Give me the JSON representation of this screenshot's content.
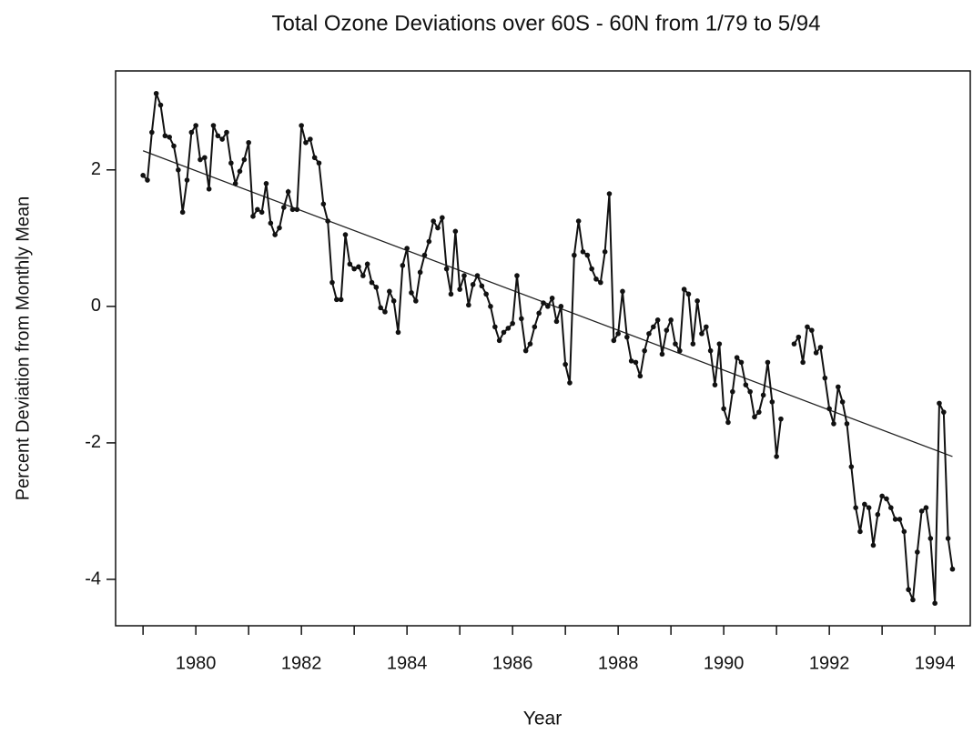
{
  "chart_data": {
    "type": "line",
    "title": "Total Ozone Deviations over 60S - 60N from 1/79 to 5/94",
    "x_label": "Year",
    "y_label": "Percent Deviation from Monthly Mean",
    "x": [
      1979,
      1979.083,
      1979.167,
      1979.25,
      1979.333,
      1979.417,
      1979.5,
      1979.583,
      1979.667,
      1979.75,
      1979.833,
      1979.917,
      1980,
      1980.083,
      1980.167,
      1980.25,
      1980.333,
      1980.417,
      1980.5,
      1980.583,
      1980.667,
      1980.75,
      1980.833,
      1980.917,
      1981,
      1981.083,
      1981.167,
      1981.25,
      1981.333,
      1981.417,
      1981.5,
      1981.583,
      1981.667,
      1981.75,
      1981.833,
      1981.917,
      1982,
      1982.083,
      1982.167,
      1982.25,
      1982.333,
      1982.417,
      1982.5,
      1982.583,
      1982.667,
      1982.75,
      1982.833,
      1982.917,
      1983,
      1983.083,
      1983.167,
      1983.25,
      1983.333,
      1983.417,
      1983.5,
      1983.583,
      1983.667,
      1983.75,
      1983.833,
      1983.917,
      1984,
      1984.083,
      1984.167,
      1984.25,
      1984.333,
      1984.417,
      1984.5,
      1984.583,
      1984.667,
      1984.75,
      1984.833,
      1984.917,
      1985,
      1985.083,
      1985.167,
      1985.25,
      1985.333,
      1985.417,
      1985.5,
      1985.583,
      1985.667,
      1985.75,
      1985.833,
      1985.917,
      1986,
      1986.083,
      1986.167,
      1986.25,
      1986.333,
      1986.417,
      1986.5,
      1986.583,
      1986.667,
      1986.75,
      1986.833,
      1986.917,
      1987,
      1987.083,
      1987.167,
      1987.25,
      1987.333,
      1987.417,
      1987.5,
      1987.583,
      1987.667,
      1987.75,
      1987.833,
      1987.917,
      1988,
      1988.083,
      1988.167,
      1988.25,
      1988.333,
      1988.417,
      1988.5,
      1988.583,
      1988.667,
      1988.75,
      1988.833,
      1988.917,
      1989,
      1989.083,
      1989.167,
      1989.25,
      1989.333,
      1989.417,
      1989.5,
      1989.583,
      1989.667,
      1989.75,
      1989.833,
      1989.917,
      1990,
      1990.083,
      1990.167,
      1990.25,
      1990.333,
      1990.417,
      1990.5,
      1990.583,
      1990.667,
      1990.75,
      1990.833,
      1990.917,
      1991,
      1991.083,
      1991.167,
      1991.25,
      1991.333,
      1991.417,
      1991.5,
      1991.583,
      1991.667,
      1991.75,
      1991.833,
      1991.917,
      1992,
      1992.083,
      1992.167,
      1992.25,
      1992.333,
      1992.417,
      1992.5,
      1992.583,
      1992.667,
      1992.75,
      1992.833,
      1992.917,
      1993,
      1993.083,
      1993.167,
      1993.25,
      1993.333,
      1993.417,
      1993.5,
      1993.583,
      1993.667,
      1993.75,
      1993.833,
      1993.917,
      1994,
      1994.083,
      1994.167,
      1994.25,
      1994.333
    ],
    "series": [
      {
        "color": "#111111",
        "values": [
          1.92,
          1.85,
          2.55,
          3.12,
          2.95,
          2.5,
          2.48,
          2.35,
          2.0,
          1.38,
          1.85,
          2.55,
          2.65,
          2.15,
          2.18,
          1.72,
          2.65,
          2.5,
          2.45,
          2.55,
          2.1,
          1.8,
          1.98,
          2.15,
          2.4,
          1.32,
          1.42,
          1.38,
          1.8,
          1.22,
          1.05,
          1.15,
          1.45,
          1.68,
          1.42,
          1.42,
          2.65,
          2.4,
          2.45,
          2.18,
          2.1,
          1.5,
          1.25,
          0.35,
          0.1,
          0.1,
          1.05,
          0.62,
          0.55,
          0.58,
          0.45,
          0.62,
          0.35,
          0.28,
          -0.02,
          -0.08,
          0.22,
          0.08,
          -0.38,
          0.6,
          0.85,
          0.2,
          0.08,
          0.5,
          0.75,
          0.95,
          1.25,
          1.15,
          1.3,
          0.55,
          0.18,
          1.1,
          0.25,
          0.45,
          0.02,
          0.32,
          0.45,
          0.3,
          0.18,
          0.0,
          -0.3,
          -0.5,
          -0.38,
          -0.32,
          -0.25,
          0.45,
          -0.18,
          -0.65,
          -0.55,
          -0.3,
          -0.1,
          0.05,
          0.0,
          0.12,
          -0.22,
          0.0,
          -0.85,
          -1.12,
          0.75,
          1.25,
          0.8,
          0.75,
          0.55,
          0.4,
          0.35,
          0.8,
          1.65,
          -0.5,
          -0.4,
          0.22,
          -0.45,
          -0.8,
          -0.82,
          -1.02,
          -0.65,
          -0.4,
          -0.3,
          -0.2,
          -0.7,
          -0.35,
          -0.2,
          -0.55,
          -0.65,
          0.25,
          0.18,
          -0.55,
          0.08,
          -0.4,
          -0.3,
          -0.65,
          -1.15,
          -0.55,
          -1.5,
          -1.7,
          -1.25,
          -0.75,
          -0.82,
          -1.15,
          -1.25,
          -1.62,
          -1.55,
          -1.3,
          -0.82,
          -1.4,
          -2.2,
          -1.65,
          null,
          null,
          -0.55,
          -0.45,
          -0.82,
          -0.3,
          -0.35,
          -0.68,
          -0.6,
          -1.05,
          -1.5,
          -1.72,
          -1.18,
          -1.4,
          -1.72,
          -2.35,
          -2.95,
          -3.3,
          -2.9,
          -2.95,
          -3.5,
          -3.05,
          -2.78,
          -2.82,
          -2.95,
          -3.12,
          -3.12,
          -3.3,
          -4.15,
          -4.3,
          -3.6,
          -3.0,
          -2.95,
          -3.4,
          -4.35,
          -1.42,
          -1.55,
          -3.4,
          -3.85
        ]
      }
    ],
    "trend": {
      "x": [
        1979,
        1994.333
      ],
      "values": [
        2.28,
        -2.2
      ]
    },
    "xlim": [
      1978.48,
      1994.67
    ],
    "ylim": [
      -4.68,
      3.45
    ],
    "xticks": [
      1980,
      1982,
      1984,
      1986,
      1988,
      1990,
      1992,
      1994
    ],
    "xminor_ticks": [
      1979,
      1981,
      1983,
      1985,
      1987,
      1989,
      1991,
      1993
    ],
    "yticks": [
      -4,
      -2,
      0,
      2
    ],
    "grid": false
  }
}
